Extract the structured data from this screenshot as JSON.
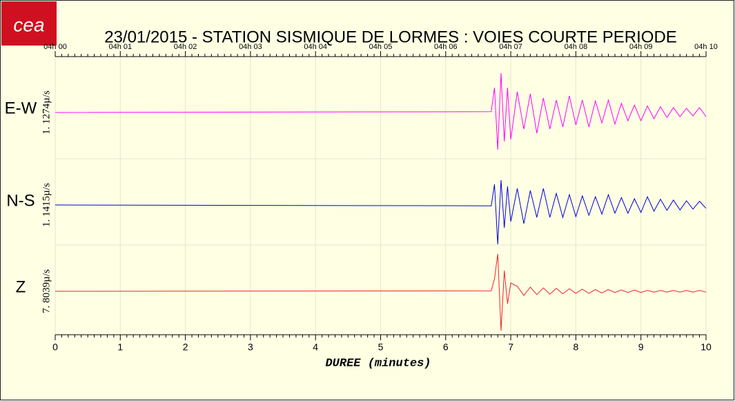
{
  "chart_data": {
    "type": "line",
    "logo": "cea",
    "title": "23/01/2015  -  STATION SISMIQUE DE LORMES : VOIES COURTE PERIODE",
    "xlabel": "DUREE (minutes)",
    "xlim": [
      0,
      10
    ],
    "xticks": [
      0,
      1,
      2,
      3,
      4,
      5,
      6,
      7,
      8,
      9,
      10
    ],
    "top_ticks": [
      "04h 00",
      "04h 01",
      "04h 02",
      "04h 03",
      "04h 04",
      "04h 05",
      "04h 06",
      "04h 07",
      "04h 08",
      "04h 09",
      "04h 10"
    ],
    "ylim": [
      -1,
      1
    ],
    "grid": true,
    "x": [
      0,
      6.7,
      6.75,
      6.8,
      6.85,
      6.9,
      6.95,
      7.0,
      7.1,
      7.2,
      7.3,
      7.4,
      7.5,
      7.6,
      7.7,
      7.8,
      7.9,
      8.0,
      8.1,
      8.2,
      8.3,
      8.4,
      8.5,
      8.6,
      8.7,
      8.8,
      8.9,
      9.0,
      9.1,
      9.2,
      9.3,
      9.4,
      9.5,
      9.6,
      9.7,
      9.8,
      9.9,
      10.0
    ],
    "series": [
      {
        "name": "E-W",
        "scale_label": "1. 1274µ/s",
        "color": "#ff00ff",
        "values": [
          0,
          0.02,
          0.6,
          -0.9,
          0.95,
          -0.7,
          0.6,
          -0.65,
          0.5,
          -0.4,
          0.45,
          -0.5,
          0.35,
          -0.4,
          0.3,
          -0.35,
          0.4,
          -0.3,
          0.3,
          -0.35,
          0.28,
          -0.25,
          0.3,
          -0.28,
          0.22,
          -0.2,
          0.18,
          -0.2,
          0.16,
          -0.15,
          0.14,
          -0.12,
          0.12,
          -0.1,
          0.1,
          -0.08,
          0.12,
          -0.1
        ]
      },
      {
        "name": "N-S",
        "scale_label": "1. 1415µ/s",
        "color": "#0000dd",
        "values": [
          0,
          -0.02,
          0.5,
          -0.95,
          0.6,
          -0.55,
          0.45,
          -0.4,
          0.4,
          -0.45,
          0.35,
          -0.3,
          0.4,
          -0.3,
          0.28,
          -0.3,
          0.25,
          -0.28,
          0.22,
          -0.25,
          0.2,
          -0.22,
          0.25,
          -0.2,
          0.18,
          -0.2,
          0.15,
          -0.18,
          0.2,
          -0.15,
          0.14,
          -0.13,
          0.12,
          -0.12,
          0.1,
          -0.1,
          0.09,
          -0.08
        ]
      },
      {
        "name": "Z",
        "scale_label": "7. 8039µ/s",
        "color": "#ee2222",
        "values": [
          0,
          0.01,
          0.3,
          0.9,
          -0.95,
          0.5,
          -0.3,
          0.2,
          0.12,
          -0.1,
          0.1,
          -0.08,
          0.08,
          -0.07,
          0.07,
          -0.06,
          0.06,
          -0.05,
          0.05,
          -0.05,
          0.04,
          -0.04,
          0.04,
          -0.03,
          0.03,
          -0.03,
          0.03,
          -0.03,
          0.02,
          -0.02,
          0.02,
          -0.02,
          0.02,
          -0.02,
          0.02,
          -0.02,
          0.02,
          -0.02
        ]
      }
    ]
  }
}
